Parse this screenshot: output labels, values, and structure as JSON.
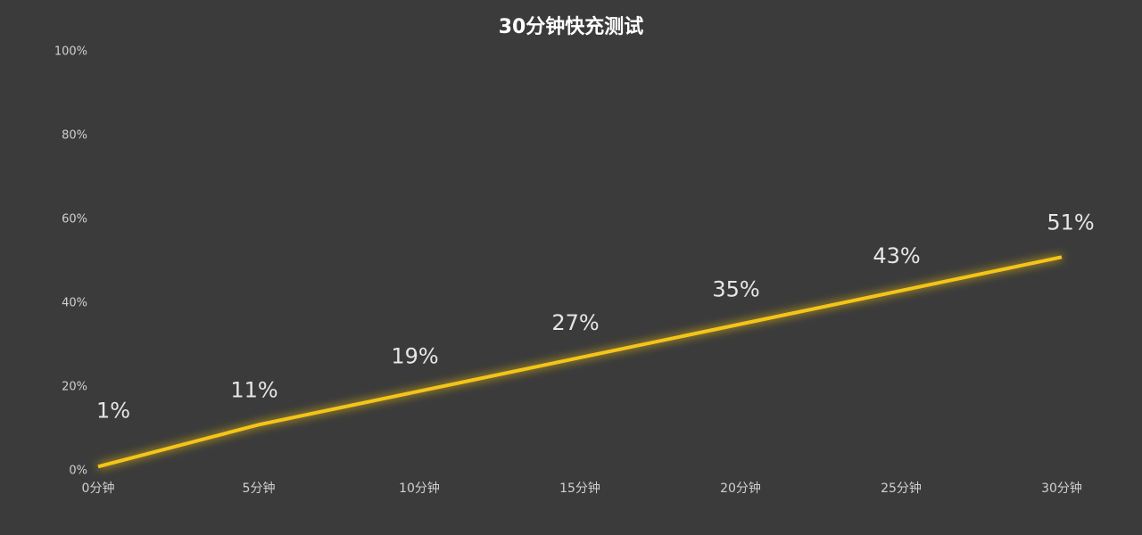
{
  "chart_data": {
    "type": "line",
    "title": "30分钟快充测试",
    "categories": [
      "0分钟",
      "5分钟",
      "10分钟",
      "15分钟",
      "20分钟",
      "25分钟",
      "30分钟"
    ],
    "values": [
      1,
      11,
      19,
      27,
      35,
      43,
      51
    ],
    "value_labels": [
      "1%",
      "11%",
      "19%",
      "27%",
      "35%",
      "43%",
      "51%"
    ],
    "color": "#f5c518",
    "ylim": [
      0,
      100
    ],
    "yticks": [
      {
        "value": 0,
        "label": "0%"
      },
      {
        "value": 20,
        "label": "20%"
      },
      {
        "value": 40,
        "label": "40%"
      },
      {
        "value": 60,
        "label": "60%"
      },
      {
        "value": 80,
        "label": "80%"
      },
      {
        "value": 100,
        "label": "100%"
      }
    ],
    "grid": false
  }
}
